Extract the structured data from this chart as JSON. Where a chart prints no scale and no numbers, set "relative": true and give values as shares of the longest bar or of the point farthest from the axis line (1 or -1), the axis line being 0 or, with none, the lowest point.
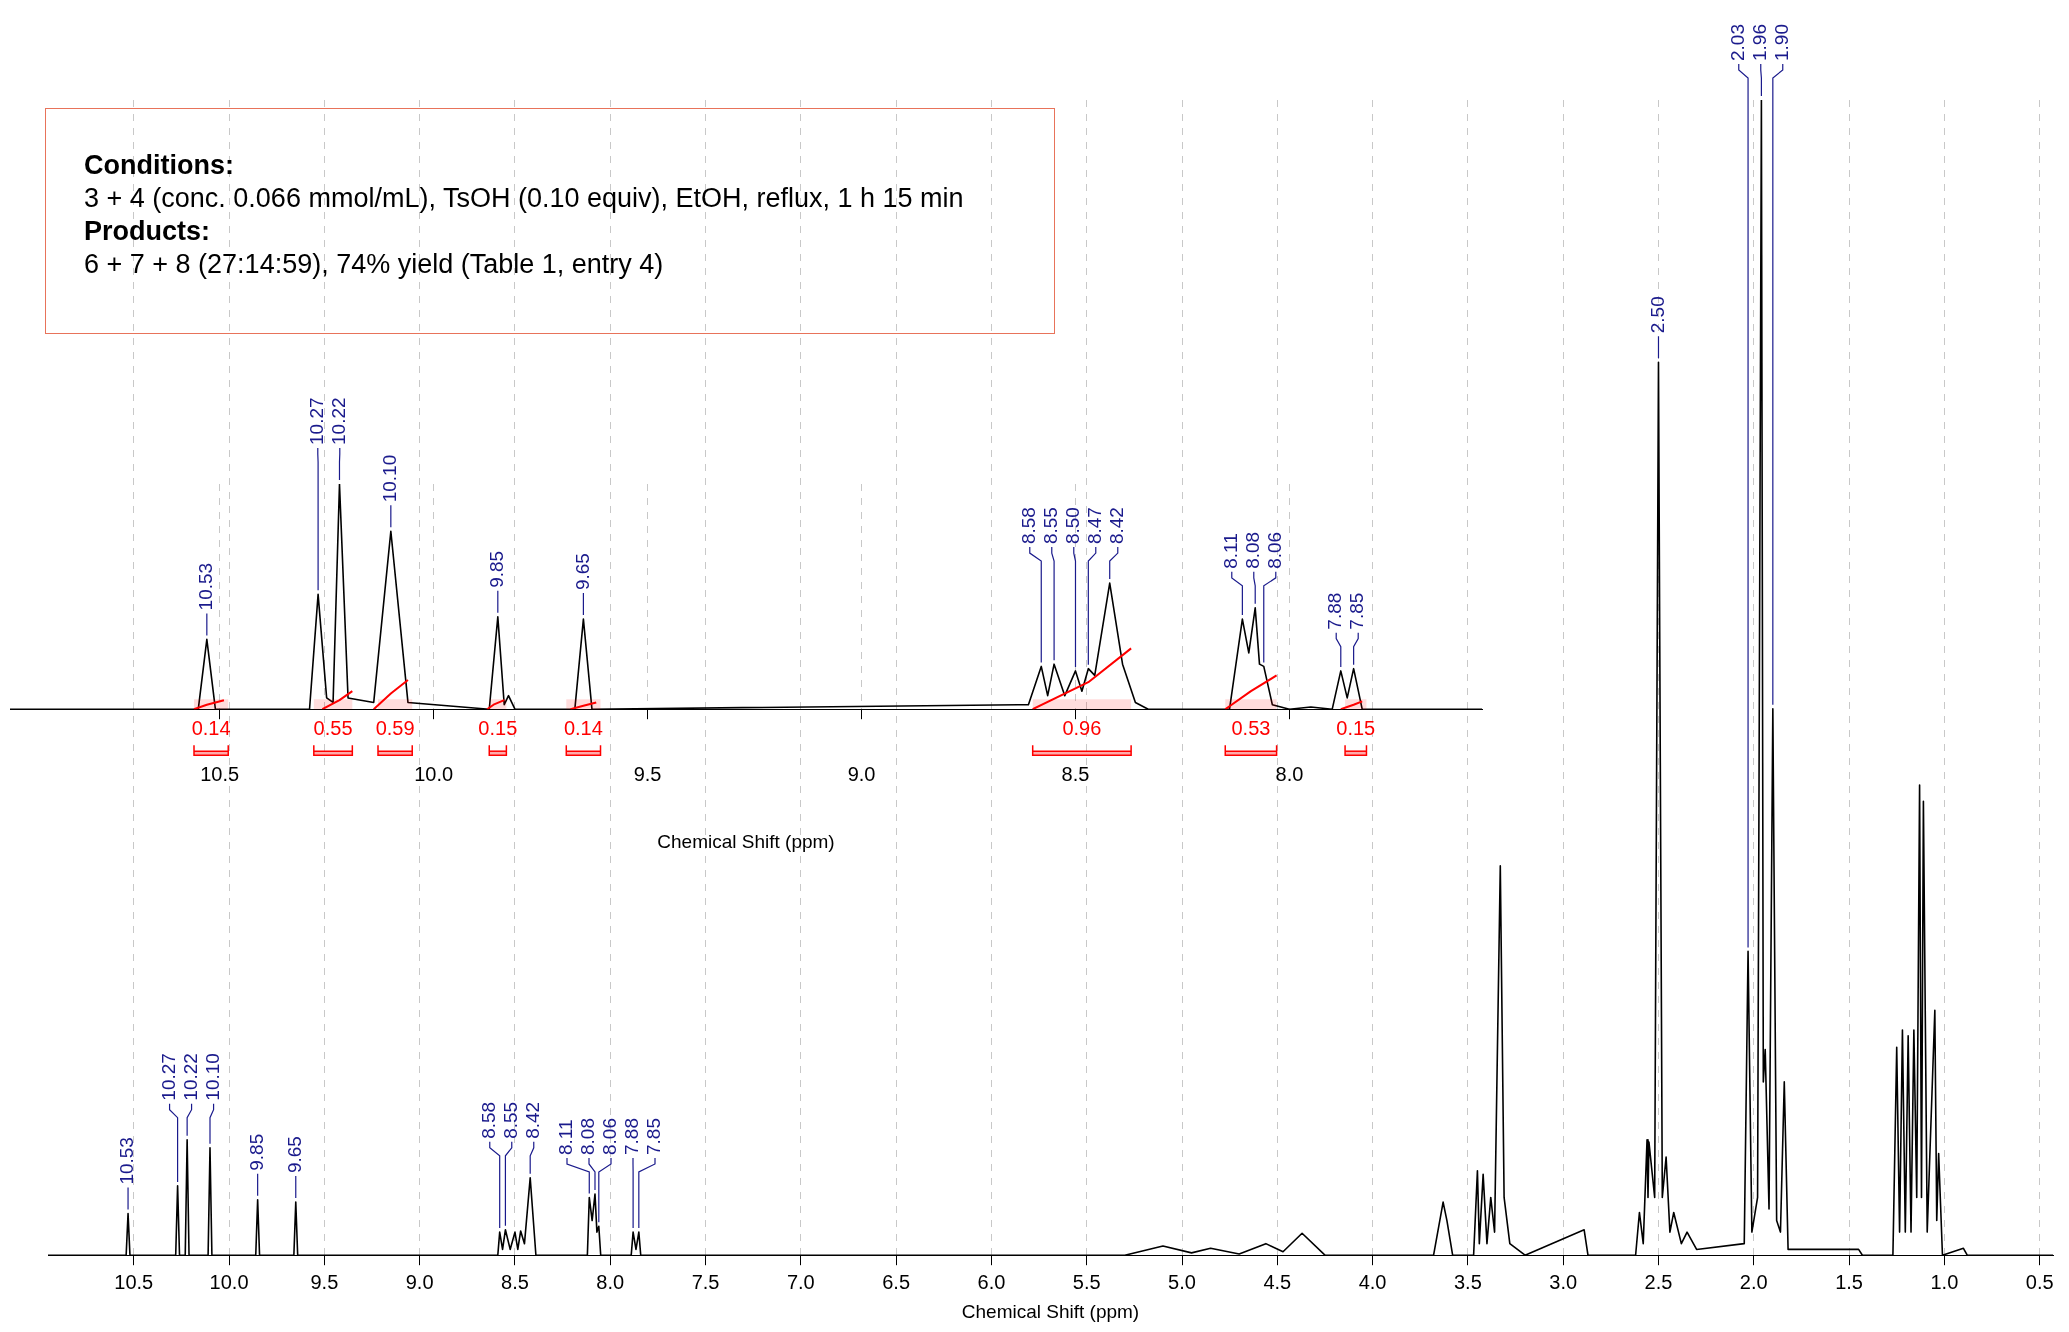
{
  "chart_data": [
    {
      "type": "line",
      "relative": true,
      "xlabel": "Chemical Shift (ppm)",
      "grid": "x",
      "xlim": [
        10.99,
        7.55
      ],
      "xticks": [
        10.5,
        {
          "value": 10,
          "label": "10.0"
        },
        9.5,
        {
          "value": 9,
          "label": "9.0"
        },
        8.5,
        {
          "value": 8,
          "label": "8.0"
        }
      ],
      "series": [
        {
          "color": "#000000",
          "x": [
            10.99,
            10.55,
            10.53,
            10.51,
            10.29,
            10.27,
            10.25,
            10.235,
            10.22,
            10.2,
            10.14,
            10.1,
            10.06,
            9.87,
            9.85,
            9.835,
            9.825,
            9.81,
            9.67,
            9.65,
            9.63,
            8.61,
            8.58,
            8.565,
            8.55,
            8.525,
            8.5,
            8.485,
            8.47,
            8.455,
            8.42,
            8.39,
            8.36,
            8.33,
            8.14,
            8.11,
            8.095,
            8.08,
            8.07,
            8.06,
            8.04,
            8.0,
            7.95,
            7.9,
            7.88,
            7.865,
            7.85,
            7.83,
            7.55
          ],
          "values": [
            0,
            0,
            0.31,
            0,
            0,
            0.51,
            0.05,
            0.03,
            1,
            0.05,
            0.03,
            0.79,
            0.03,
            0,
            0.41,
            0.02,
            0.06,
            0,
            0,
            0.4,
            0,
            0.02,
            0.19,
            0.06,
            0.2,
            0.06,
            0.17,
            0.08,
            0.18,
            0.15,
            0.56,
            0.2,
            0.03,
            0,
            0,
            0.4,
            0.25,
            0.45,
            0.2,
            0.19,
            0.02,
            0,
            0.01,
            0,
            0.17,
            0.05,
            0.18,
            0,
            0
          ]
        },
        {
          "color": "#ff0000",
          "x": [
            10.56,
            10.53,
            10.49,
            10.4,
            10.26,
            10.22,
            10.19,
            10.16,
            10.14,
            10.1,
            10.06,
            9.95,
            9.875,
            9.86,
            9.835,
            9.75,
            9.68,
            9.65,
            9.62,
            9.0,
            8.6,
            8.47,
            8.37,
            8.25,
            8.15,
            8.09,
            8.03,
            7.95,
            7.88,
            7.85,
            7.83
          ],
          "values": [
            0,
            0.02,
            0.04,
            null,
            0,
            0.04,
            0.08,
            null,
            0,
            0.07,
            0.13,
            null,
            0,
            0.02,
            0.04,
            null,
            0,
            0.015,
            0.03,
            null,
            0,
            0.12,
            0.27,
            null,
            0,
            0.08,
            0.15,
            null,
            0,
            0.02,
            0.035
          ]
        }
      ],
      "annotations": [
        "Conditions:",
        "3 + 4 (conc. 0.066 mmol/mL), TsOH (0.10 equiv), EtOH, reflux, 1 h 15 min",
        "Products:",
        "6 + 7 + 8 (27:14:59), 74% yield (Table 1, entry 4)",
        {
          "text": "10.53",
          "x": 10.53,
          "y": 0.31
        },
        {
          "text": "10.27",
          "x": 10.27,
          "y": 0.51
        },
        {
          "text": "10.22",
          "x": 10.22,
          "y": 1
        },
        {
          "text": "10.10",
          "x": 10.1,
          "y": 0.79
        },
        {
          "text": "9.85",
          "x": 9.85,
          "y": 0.41
        },
        {
          "text": "9.65",
          "x": 9.65,
          "y": 0.4
        },
        {
          "text": "8.58",
          "x": 8.58,
          "y": 0.19
        },
        {
          "text": "8.55",
          "x": 8.55,
          "y": 0.2
        },
        {
          "text": "8.50",
          "x": 8.5,
          "y": 0.17
        },
        {
          "text": "8.47",
          "x": 8.47,
          "y": 0.18
        },
        {
          "text": "8.42",
          "x": 8.42,
          "y": 0.56
        },
        {
          "text": "8.11",
          "x": 8.11,
          "y": 0.4
        },
        {
          "text": "8.08",
          "x": 8.08,
          "y": 0.45
        },
        {
          "text": "8.06",
          "x": 8.06,
          "y": 0.19
        },
        {
          "text": "7.88",
          "x": 7.88,
          "y": 0.17
        },
        {
          "text": "7.85",
          "x": 7.85,
          "y": 0.18
        }
      ],
      "bands": [
        {
          "axis": "x",
          "from": 10.56,
          "to": 10.48,
          "label": "0.14",
          "color": "#ff0000"
        },
        {
          "axis": "x",
          "from": 10.28,
          "to": 10.19,
          "label": "0.55",
          "color": "#ff0000"
        },
        {
          "axis": "x",
          "from": 10.13,
          "to": 10.05,
          "label": "0.59",
          "color": "#ff0000"
        },
        {
          "axis": "x",
          "from": 9.87,
          "to": 9.83,
          "label": "0.15",
          "color": "#ff0000"
        },
        {
          "axis": "x",
          "from": 9.69,
          "to": 9.61,
          "label": "0.14",
          "color": "#ff0000"
        },
        {
          "axis": "x",
          "from": 8.6,
          "to": 8.37,
          "label": "0.96",
          "color": "#ff0000"
        },
        {
          "axis": "x",
          "from": 8.15,
          "to": 8.03,
          "label": "0.53",
          "color": "#ff0000"
        },
        {
          "axis": "x",
          "from": 7.87,
          "to": 7.82,
          "label": "0.15",
          "color": "#ff0000"
        }
      ]
    },
    {
      "type": "line",
      "relative": true,
      "xlabel": "Chemical Shift (ppm)",
      "grid": "x",
      "xlim": [
        10.95,
        0.43
      ],
      "xticks": [
        10.5,
        {
          "value": 10,
          "label": "10.0"
        },
        9.5,
        {
          "value": 9,
          "label": "9.0"
        },
        8.5,
        {
          "value": 8,
          "label": "8.0"
        },
        7.5,
        {
          "value": 7,
          "label": "7.0"
        },
        6.5,
        {
          "value": 6,
          "label": "6.0"
        },
        5.5,
        {
          "value": 5,
          "label": "5.0"
        },
        4.5,
        {
          "value": 4,
          "label": "4.0"
        },
        3.5,
        {
          "value": 3,
          "label": "3.0"
        },
        2.5,
        {
          "value": 2,
          "label": "2.0"
        },
        1.5,
        {
          "value": 1,
          "label": "1.0"
        },
        0.5
      ],
      "series": [
        {
          "color": "#000000",
          "x": [
            10.95,
            10.54,
            10.53,
            10.52,
            10.28,
            10.27,
            10.26,
            10.23,
            10.22,
            10.21,
            10.11,
            10.1,
            10.09,
            9.86,
            9.85,
            9.84,
            9.66,
            9.65,
            9.64,
            8.59,
            8.58,
            8.565,
            8.55,
            8.525,
            8.5,
            8.485,
            8.47,
            8.45,
            8.42,
            8.39,
            8.12,
            8.11,
            8.095,
            8.08,
            8.07,
            8.06,
            8.05,
            7.89,
            7.88,
            7.865,
            7.85,
            7.84,
            5.3,
            5.1,
            4.95,
            4.85,
            4.7,
            4.56,
            4.47,
            4.37,
            4.25,
            3.68,
            3.63,
            3.61,
            3.58,
            3.47,
            3.45,
            3.44,
            3.42,
            3.4,
            3.38,
            3.36,
            3.33,
            3.31,
            3.28,
            3.2,
            2.89,
            2.87,
            2.62,
            2.6,
            2.58,
            2.56,
            2.555,
            2.55,
            2.52,
            2.5,
            2.48,
            2.46,
            2.44,
            2.42,
            2.38,
            2.35,
            2.3,
            2.05,
            2.03,
            2.01,
            1.98,
            1.96,
            1.95,
            1.94,
            1.92,
            1.9,
            1.88,
            1.86,
            1.84,
            1.82,
            1.45,
            1.43,
            1.27,
            1.25,
            1.235,
            1.22,
            1.205,
            1.19,
            1.175,
            1.16,
            1.145,
            1.13,
            1.12,
            1.11,
            1.09,
            1.05,
            1.04,
            1.03,
            1.01,
            0.9,
            0.88,
            0.43
          ],
          "values": [
            0,
            0,
            0.036,
            0,
            0,
            0.06,
            0,
            0,
            0.1,
            0,
            0,
            0.093,
            0,
            0,
            0.048,
            0,
            0,
            0.046,
            0,
            0,
            0.02,
            0.005,
            0.022,
            0.005,
            0.02,
            0.005,
            0.021,
            0.01,
            0.067,
            0,
            0,
            0.05,
            0.03,
            0.053,
            0.02,
            0.025,
            0,
            0,
            0.02,
            0.005,
            0.02,
            0,
            0,
            0.008,
            0.002,
            0.006,
            0.001,
            0.01,
            0.003,
            0.019,
            0,
            0,
            0.046,
            0.03,
            0,
            0,
            0.073,
            0.01,
            0.07,
            0.01,
            0.05,
            0.02,
            0.337,
            0.05,
            0.01,
            0,
            0.022,
            0,
            0,
            0.037,
            0.01,
            0.1,
            0.05,
            0.098,
            0.05,
            0.773,
            0.05,
            0.085,
            0.02,
            0.037,
            0.01,
            0.02,
            0.005,
            0.01,
            0.263,
            0.02,
            0.05,
            1,
            0.15,
            0.178,
            0.04,
            0.473,
            0.03,
            0.02,
            0.15,
            0.005,
            0.005,
            0,
            0,
            0.18,
            0.02,
            0.195,
            0.02,
            0.19,
            0.02,
            0.195,
            0.05,
            0.407,
            0.05,
            0.393,
            0.02,
            0.212,
            0.03,
            0.088,
            0,
            0.006,
            0,
            0
          ]
        }
      ],
      "annotations": [
        {
          "text": "10.53",
          "x": 10.53,
          "y": 0.036
        },
        {
          "text": "10.27",
          "x": 10.27,
          "y": 0.06
        },
        {
          "text": "10.22",
          "x": 10.22,
          "y": 0.1
        },
        {
          "text": "10.10",
          "x": 10.1,
          "y": 0.093
        },
        {
          "text": "9.85",
          "x": 9.85,
          "y": 0.048
        },
        {
          "text": "9.65",
          "x": 9.65,
          "y": 0.046
        },
        {
          "text": "8.58",
          "x": 8.58,
          "y": 0.02
        },
        {
          "text": "8.55",
          "x": 8.55,
          "y": 0.022
        },
        {
          "text": "8.42",
          "x": 8.42,
          "y": 0.067
        },
        {
          "text": "8.11",
          "x": 8.11,
          "y": 0.05
        },
        {
          "text": "8.08",
          "x": 8.08,
          "y": 0.053
        },
        {
          "text": "8.06",
          "x": 8.06,
          "y": 0.025
        },
        {
          "text": "7.88",
          "x": 7.88,
          "y": 0.02
        },
        {
          "text": "7.85",
          "x": 7.85,
          "y": 0.02
        },
        {
          "text": "2.50",
          "x": 2.5,
          "y": 0.773
        },
        {
          "text": "2.03",
          "x": 2.03,
          "y": 0.263
        },
        {
          "text": "1.96",
          "x": 1.96,
          "y": 1
        },
        {
          "text": "1.90",
          "x": 1.9,
          "y": 0.473
        }
      ]
    }
  ]
}
